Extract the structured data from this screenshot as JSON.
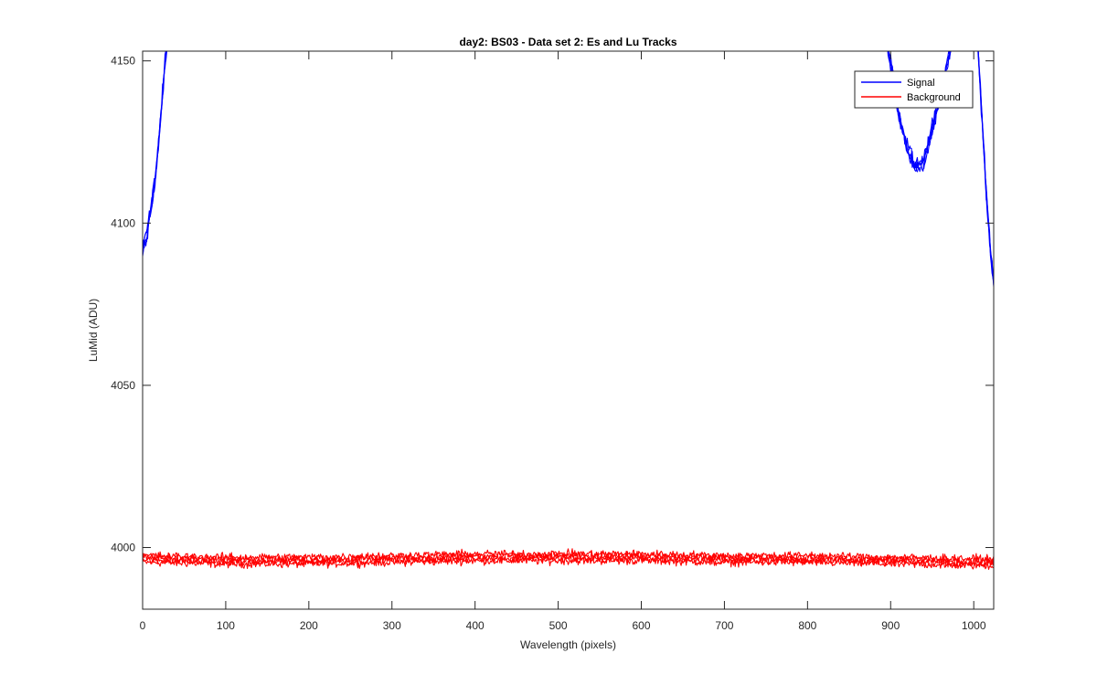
{
  "chart_data": {
    "type": "line",
    "title": "day2: BS03 - Data set 2: Es and Lu Tracks",
    "xlabel": "Wavelength (pixels)",
    "ylabel": "LuMid (ADU)",
    "xlim": [
      0,
      1024
    ],
    "ylim": [
      3981,
      4153
    ],
    "xticks": [
      0,
      100,
      200,
      300,
      400,
      500,
      600,
      700,
      800,
      900,
      1000
    ],
    "yticks": [
      4000,
      4050,
      4100,
      4150
    ],
    "grid": false,
    "legend_position": "top-right",
    "series": [
      {
        "name": "Signal",
        "color": "#0000ff",
        "traces": 4,
        "noise": 3,
        "x": [
          0,
          5,
          10,
          15,
          20,
          25,
          30,
          35,
          880,
          890,
          900,
          905,
          910,
          920,
          930,
          940,
          950,
          960,
          970,
          980,
          990,
          1000,
          1005,
          1010,
          1015,
          1020,
          1024
        ],
        "y": [
          4092,
          4097,
          4104,
          4113,
          4127,
          4143,
          4158,
          4172,
          4172,
          4162,
          4150,
          4142,
          4133,
          4123,
          4117,
          4119,
          4129,
          4140,
          4151,
          4162,
          4172,
          4164,
          4154,
          4132,
          4110,
          4092,
          4082
        ]
      },
      {
        "name": "Background",
        "color": "#ff0000",
        "traces": 4,
        "noise": 1.8,
        "x": [
          0,
          100,
          200,
          300,
          400,
          500,
          600,
          700,
          800,
          900,
          1000,
          1024
        ],
        "y": [
          3996.5,
          3996,
          3996,
          3996.5,
          3997,
          3997,
          3997,
          3996.5,
          3996.5,
          3996,
          3995.5,
          3995.5
        ]
      }
    ]
  }
}
